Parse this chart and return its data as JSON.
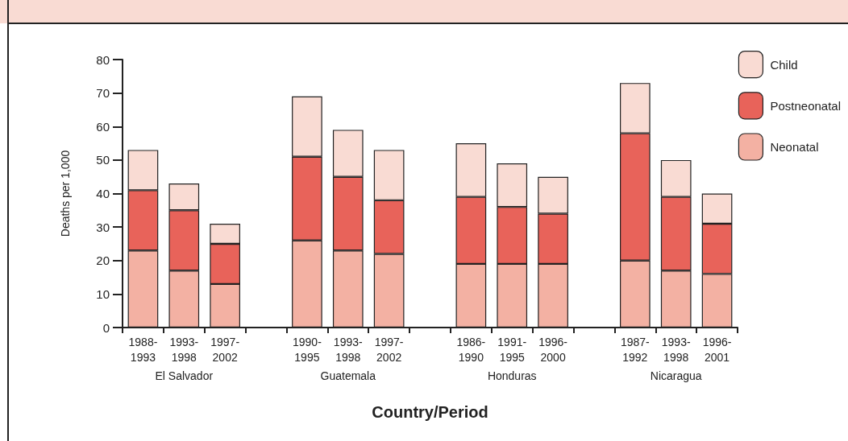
{
  "chart_data": {
    "type": "bar",
    "stacked": true,
    "xlabel": "Country/Period",
    "ylabel": "Deaths per 1,000",
    "categories": [
      "1988-1993",
      "1993-1998",
      "1997-2002",
      null,
      "1990-1995",
      "1993-1998",
      "1997-2002",
      null,
      "1986-1990",
      "1991-1995",
      "1996-2000",
      null,
      "1987-1992",
      "1993-1998",
      "1996-2001"
    ],
    "series": [
      {
        "name": "Neonatal",
        "color": "#f3b1a3",
        "values": [
          23,
          17,
          13,
          null,
          26,
          23,
          22,
          null,
          19,
          19,
          19,
          null,
          20,
          17,
          16
        ]
      },
      {
        "name": "Postneonatal",
        "color": "#e8635a",
        "values": [
          18,
          18,
          12,
          null,
          25,
          22,
          16,
          null,
          20,
          17,
          15,
          null,
          38,
          22,
          15
        ]
      },
      {
        "name": "Child",
        "color": "#f9dbd3",
        "values": [
          12,
          8,
          6,
          null,
          18,
          14,
          15,
          null,
          16,
          13,
          11,
          null,
          15,
          11,
          9
        ]
      }
    ],
    "ylim": [
      0,
      80
    ],
    "yticks": [
      0,
      10,
      20,
      30,
      40,
      50,
      60,
      70,
      80
    ],
    "grid": false,
    "legend": "top right",
    "annotations": [
      "El Salvador",
      "Guatemala",
      "Honduras",
      "Nicaragua"
    ]
  }
}
